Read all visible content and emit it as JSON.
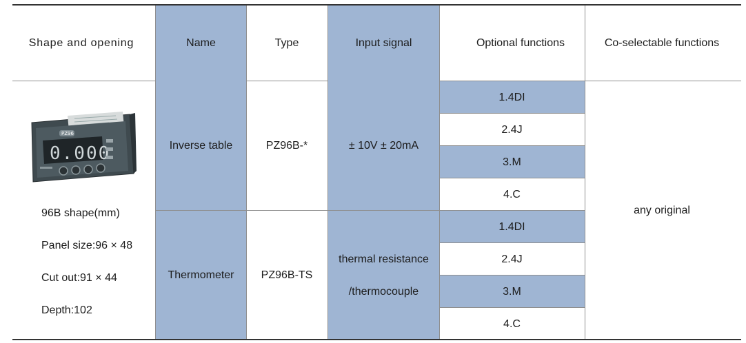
{
  "header": {
    "shape_opening": "Shape and opening",
    "name": "Name",
    "type": "Type",
    "input_signal": "Input signal",
    "optional_functions": "Optional functions",
    "co_selectable": "Co-selectable functions"
  },
  "shape": {
    "title": "96B shape(mm)",
    "panel": "Panel size:96 × 48",
    "cut": "Cut out:91 × 44",
    "depth": "Depth:102",
    "display_digits": "0.000",
    "device_label": "PZ96"
  },
  "rows": [
    {
      "name": "Inverse table",
      "type": "PZ96B-*",
      "input": "± 10V ± 20mA",
      "options": [
        "1.4DI",
        "2.4J",
        "3.M",
        "4.C"
      ]
    },
    {
      "name": "Thermometer",
      "type": "PZ96B-TS",
      "input_line1": "thermal resistance",
      "input_line2": "/thermocouple",
      "options": [
        "1.4DI",
        "2.4J",
        "3.M",
        "4.C"
      ]
    }
  ],
  "co_selectable_value": "any original",
  "colors": {
    "blue_fill": "#9fb5d3",
    "rule": "#333333"
  }
}
